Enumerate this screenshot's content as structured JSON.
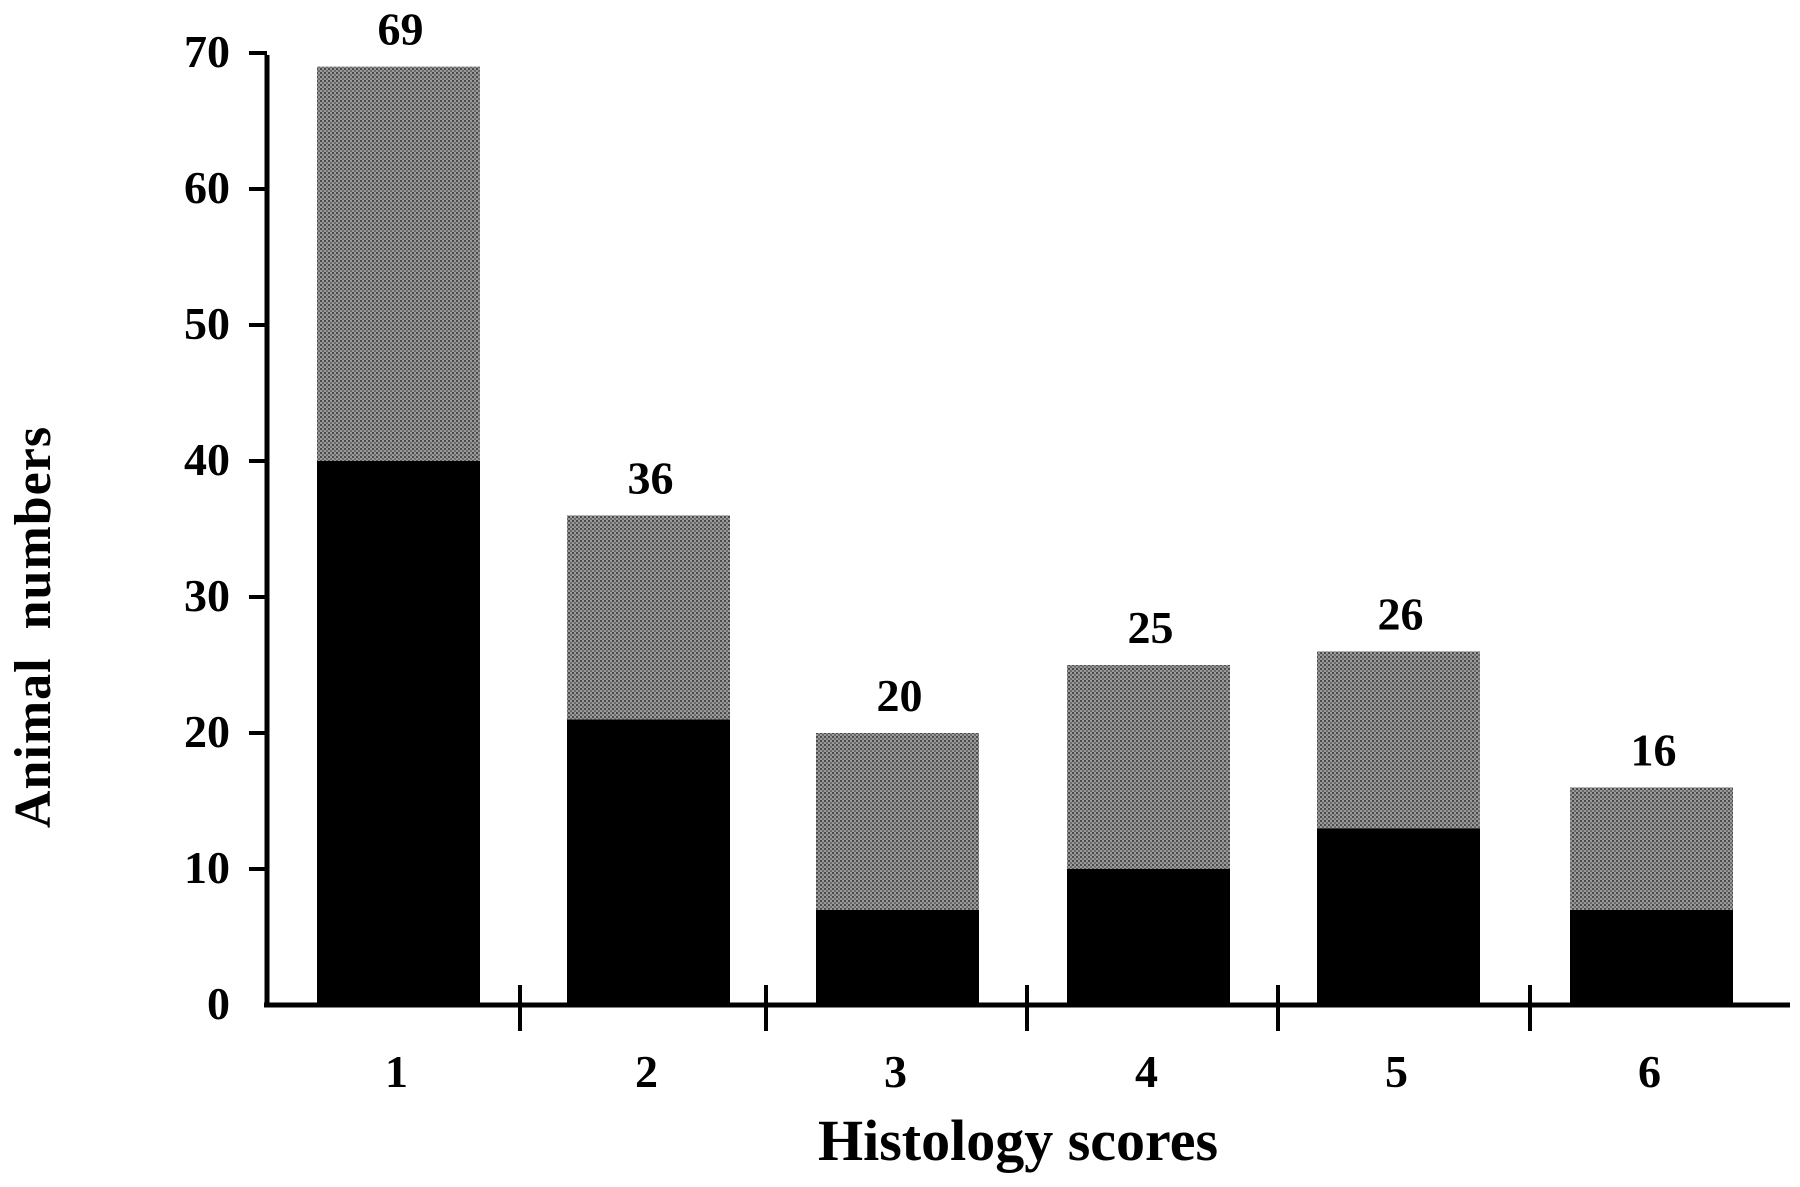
{
  "chart_data": {
    "type": "bar",
    "stacked": true,
    "categories": [
      "1",
      "2",
      "3",
      "4",
      "5",
      "6"
    ],
    "series": [
      {
        "values": [
          40,
          21,
          7,
          10,
          13,
          7
        ],
        "color": "#000000",
        "pattern": "solid"
      },
      {
        "values": [
          29,
          15,
          13,
          15,
          13,
          9
        ],
        "color": "#8c8c8c",
        "pattern": "stipple"
      }
    ],
    "totals": [
      69,
      36,
      20,
      25,
      26,
      16
    ],
    "data_labels": [
      "69",
      "36",
      "20",
      "25",
      "26",
      "16"
    ],
    "y_ticks": [
      "0",
      "10",
      "20",
      "30",
      "40",
      "50",
      "60",
      "70"
    ],
    "xlabel": "Histology scores",
    "ylabel": "Animal  numbers",
    "ylim": [
      0,
      70
    ],
    "grid": false,
    "legend": "none"
  }
}
